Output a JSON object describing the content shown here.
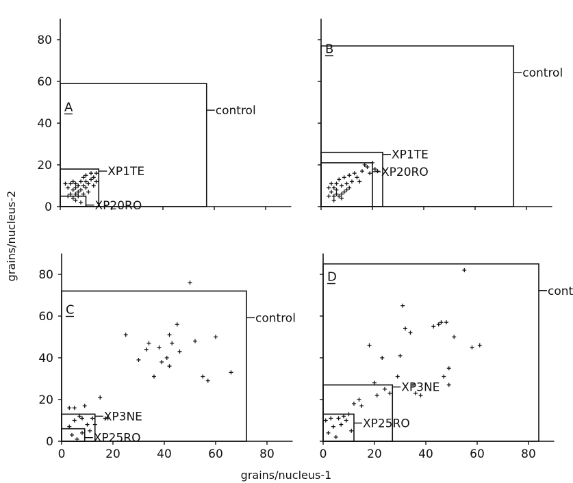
{
  "figure": {
    "xlabel": "grains/nucleus-1",
    "ylabel": "grains/nucleus-2"
  },
  "chart_data": [
    {
      "type": "scatter",
      "panel": "A",
      "xlim": [
        0,
        90
      ],
      "ylim": [
        0,
        90
      ],
      "xticks": [],
      "yticks": [
        "0",
        "20",
        "40",
        "60",
        "80"
      ],
      "grid": false,
      "boxes": [
        {
          "label": "control",
          "x": 57,
          "y": 59
        },
        {
          "label": "XP1TE",
          "x": 15,
          "y": 18
        },
        {
          "label": "XP20RO",
          "x": 10,
          "y": 5
        }
      ],
      "points": [
        [
          2,
          11
        ],
        [
          3,
          5
        ],
        [
          3,
          9
        ],
        [
          4,
          11
        ],
        [
          4,
          6
        ],
        [
          5,
          4
        ],
        [
          5,
          8
        ],
        [
          5,
          12
        ],
        [
          6,
          3
        ],
        [
          6,
          6
        ],
        [
          6,
          9
        ],
        [
          6,
          11
        ],
        [
          7,
          5
        ],
        [
          7,
          7
        ],
        [
          7,
          10
        ],
        [
          8,
          2
        ],
        [
          8,
          8
        ],
        [
          8,
          12
        ],
        [
          9,
          6
        ],
        [
          9,
          14
        ],
        [
          10,
          9
        ],
        [
          10,
          15
        ],
        [
          11,
          11
        ],
        [
          11,
          7
        ],
        [
          12,
          13
        ],
        [
          12,
          16
        ],
        [
          13,
          10
        ],
        [
          13,
          14
        ],
        [
          14,
          12
        ],
        [
          14,
          16
        ],
        [
          10,
          12
        ],
        [
          9,
          10
        ]
      ]
    },
    {
      "type": "scatter",
      "panel": "B",
      "xlim": [
        0,
        90
      ],
      "ylim": [
        0,
        90
      ],
      "xticks": [],
      "yticks": [],
      "grid": false,
      "boxes": [
        {
          "label": "control",
          "x": 75,
          "y": 77
        },
        {
          "label": "XP1TE",
          "x": 24,
          "y": 26
        },
        {
          "label": "XP20RO",
          "x": 20,
          "y": 21
        }
      ],
      "points": [
        [
          3,
          9
        ],
        [
          3,
          5
        ],
        [
          4,
          11
        ],
        [
          4,
          7
        ],
        [
          5,
          5
        ],
        [
          5,
          3
        ],
        [
          6,
          8
        ],
        [
          6,
          11
        ],
        [
          7,
          5
        ],
        [
          7,
          13
        ],
        [
          8,
          6
        ],
        [
          8,
          10
        ],
        [
          9,
          7
        ],
        [
          9,
          14
        ],
        [
          10,
          11
        ],
        [
          11,
          9
        ],
        [
          11,
          15
        ],
        [
          12,
          12
        ],
        [
          13,
          16
        ],
        [
          14,
          14
        ],
        [
          15,
          12
        ],
        [
          16,
          17
        ],
        [
          17,
          20
        ],
        [
          18,
          19
        ],
        [
          19,
          16
        ],
        [
          20,
          21
        ],
        [
          21,
          18
        ],
        [
          22,
          17
        ],
        [
          6,
          6
        ],
        [
          8,
          4
        ],
        [
          10,
          8
        ],
        [
          5,
          9
        ]
      ]
    },
    {
      "type": "scatter",
      "panel": "C",
      "xlim": [
        0,
        90
      ],
      "ylim": [
        0,
        90
      ],
      "xticks": [
        "0",
        "20",
        "40",
        "60",
        "80"
      ],
      "yticks": [
        "0",
        "20",
        "40",
        "60",
        "80"
      ],
      "grid": false,
      "boxes": [
        {
          "label": "control",
          "x": 72,
          "y": 72
        },
        {
          "label": "XP3NE",
          "x": 13,
          "y": 13
        },
        {
          "label": "XP25RO",
          "x": 9,
          "y": 6
        }
      ],
      "points": [
        [
          25,
          51
        ],
        [
          30,
          39
        ],
        [
          33,
          44
        ],
        [
          34,
          47
        ],
        [
          36,
          31
        ],
        [
          38,
          45
        ],
        [
          39,
          38
        ],
        [
          41,
          40
        ],
        [
          42,
          51
        ],
        [
          42,
          36
        ],
        [
          43,
          47
        ],
        [
          45,
          56
        ],
        [
          46,
          43
        ],
        [
          50,
          76
        ],
        [
          52,
          48
        ],
        [
          55,
          31
        ],
        [
          57,
          29
        ],
        [
          60,
          50
        ],
        [
          66,
          33
        ],
        [
          3,
          16
        ],
        [
          4,
          3
        ],
        [
          5,
          16
        ],
        [
          6,
          1
        ],
        [
          7,
          12
        ],
        [
          8,
          11
        ],
        [
          9,
          17
        ],
        [
          10,
          8
        ],
        [
          11,
          5
        ],
        [
          13,
          8
        ],
        [
          15,
          21
        ],
        [
          17,
          11
        ],
        [
          18,
          11
        ],
        [
          3,
          7
        ],
        [
          5,
          10
        ],
        [
          8,
          4
        ],
        [
          12,
          11
        ]
      ]
    },
    {
      "type": "scatter",
      "panel": "D",
      "xlim": [
        0,
        90
      ],
      "ylim": [
        0,
        90
      ],
      "xticks": [
        "0",
        "20",
        "40",
        "60",
        "80"
      ],
      "yticks": [],
      "grid": false,
      "boxes": [
        {
          "label": "control",
          "x": 84,
          "y": 85
        },
        {
          "label": "XP3NE",
          "x": 27,
          "y": 27
        },
        {
          "label": "XP25RO",
          "x": 12,
          "y": 13
        }
      ],
      "points": [
        [
          1,
          10
        ],
        [
          2,
          4
        ],
        [
          3,
          11
        ],
        [
          4,
          7
        ],
        [
          5,
          2
        ],
        [
          6,
          11
        ],
        [
          7,
          8
        ],
        [
          8,
          12
        ],
        [
          9,
          10
        ],
        [
          10,
          13
        ],
        [
          11,
          5
        ],
        [
          12,
          18
        ],
        [
          14,
          20
        ],
        [
          15,
          17
        ],
        [
          18,
          46
        ],
        [
          20,
          28
        ],
        [
          21,
          22
        ],
        [
          23,
          40
        ],
        [
          24,
          25
        ],
        [
          26,
          23
        ],
        [
          29,
          31
        ],
        [
          30,
          41
        ],
        [
          31,
          65
        ],
        [
          32,
          54
        ],
        [
          34,
          52
        ],
        [
          35,
          27
        ],
        [
          36,
          23
        ],
        [
          38,
          22
        ],
        [
          43,
          55
        ],
        [
          45,
          56
        ],
        [
          47,
          31
        ],
        [
          48,
          57
        ],
        [
          49,
          35
        ],
        [
          49,
          27
        ],
        [
          51,
          50
        ],
        [
          55,
          82
        ],
        [
          58,
          45
        ],
        [
          61,
          46
        ],
        [
          46,
          57
        ]
      ]
    }
  ]
}
